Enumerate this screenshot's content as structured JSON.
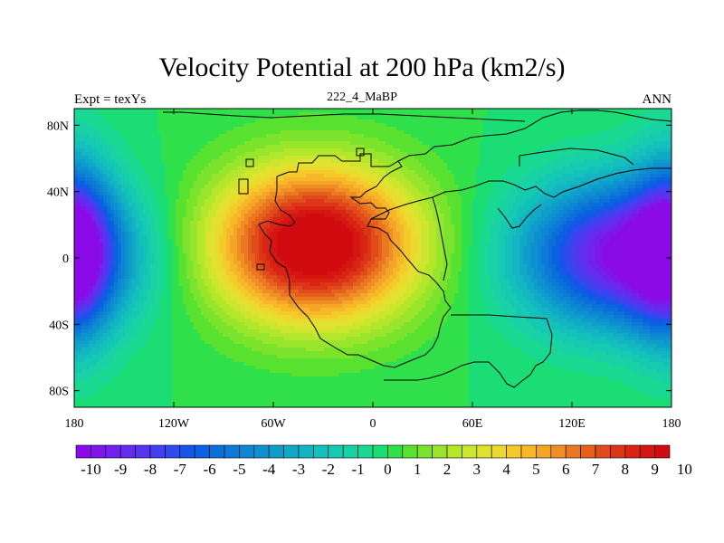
{
  "map": {
    "title": "Velocity Potential at 200 hPa (km2/s)",
    "subtitle_left": "Expt = texYs",
    "subtitle_center": "222_4_MaBP",
    "subtitle_right": "ANN",
    "lon_ticks": [
      "180",
      "120W",
      "60W",
      "0",
      "60E",
      "120E",
      "180"
    ],
    "lat_ticks": [
      "80N",
      "40N",
      "0",
      "40S",
      "80S"
    ]
  },
  "chart_data": {
    "type": "heatmap",
    "title": "Velocity Potential at 200 hPa (km2/s)",
    "xlabel": "",
    "ylabel": "",
    "xlim": [
      -180,
      180
    ],
    "ylim": [
      -90,
      90
    ],
    "levels": [
      -10.5,
      -10,
      -9.5,
      -9,
      -8.5,
      -8,
      -7.5,
      -7,
      -6.5,
      -6,
      -5.5,
      -5,
      -4.5,
      -4,
      -3.5,
      -3,
      -2.5,
      -2,
      -1.5,
      -1,
      -0.5,
      0,
      0.5,
      1,
      1.5,
      2,
      2.5,
      3,
      3.5,
      4,
      4.5,
      5,
      5.5,
      6,
      6.5,
      7,
      7.5,
      8,
      8.5,
      9,
      9.5,
      10,
      10.5
    ],
    "colorbar_labels": [
      "-10",
      "-9",
      "-8",
      "-7",
      "-6",
      "-5",
      "-4",
      "-3",
      "-2",
      "-1",
      "0",
      "1",
      "2",
      "3",
      "4",
      "5",
      "6",
      "7",
      "8",
      "9",
      "10"
    ],
    "colors": [
      "#8a0be8",
      "#7e16ec",
      "#7122ee",
      "#652cf0",
      "#5535f0",
      "#4540ef",
      "#2f4aee",
      "#1655e8",
      "#0b62e0",
      "#0b6fda",
      "#0c7ad6",
      "#0d86d3",
      "#0e92cf",
      "#0f9ecb",
      "#11aac6",
      "#12b5c1",
      "#14c0ba",
      "#16cab1",
      "#18d2a5",
      "#19d992",
      "#1ade75",
      "#30e04b",
      "#58e12e",
      "#7be32b",
      "#99e52b",
      "#b4e72c",
      "#cbe62d",
      "#dfe22e",
      "#ecd92d",
      "#f4ca2b",
      "#f6b829",
      "#f4a427",
      "#ef8e24",
      "#ea7821",
      "#e5601d",
      "#e14a1a",
      "#dd3517",
      "#d92414",
      "#d51612",
      "#d10b10"
    ],
    "centers": [
      {
        "lon": -35,
        "lat": 8,
        "amp": 10.6,
        "sx": 42,
        "sy": 32
      },
      {
        "lon": 152,
        "lat": 2,
        "amp": -10.3,
        "sx": 42,
        "sy": 30
      },
      {
        "lon": -180,
        "lat": 5,
        "amp": -6.5,
        "sx": 16,
        "sy": 38
      }
    ],
    "extremes": {
      "max": 10.6,
      "min": -10.3
    }
  },
  "colors": {
    "max": "#d10b10",
    "min": "#8a0be8",
    "mid": "#1ade75"
  }
}
